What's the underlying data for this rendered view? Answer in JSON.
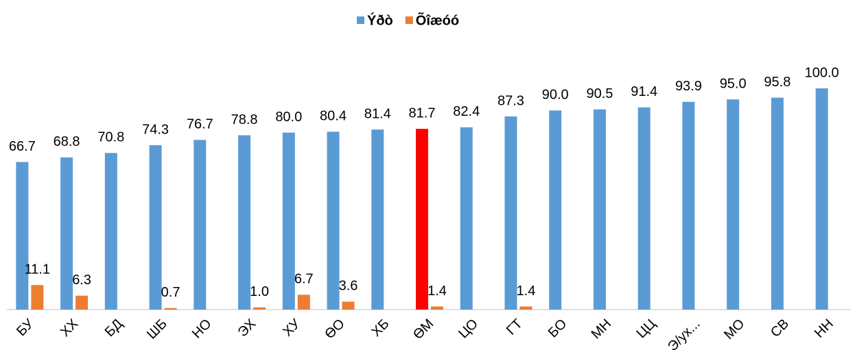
{
  "chart_data": {
    "type": "bar",
    "categories": [
      "БУ",
      "ХХ",
      "БД",
      "ШБ",
      "НО",
      "ЭХ",
      "ХУ",
      "ӨО",
      "ХБ",
      "ӨМ",
      "ЦО",
      "ГТ",
      "БО",
      "МН",
      "ЦЦ",
      "Э/ух...",
      "МО",
      "СВ",
      "НН"
    ],
    "series": [
      {
        "name": "Ýðò",
        "color": "#5b9bd5",
        "colors": [
          "#5b9bd5",
          "#5b9bd5",
          "#5b9bd5",
          "#5b9bd5",
          "#5b9bd5",
          "#5b9bd5",
          "#5b9bd5",
          "#5b9bd5",
          "#5b9bd5",
          "#ff0000",
          "#5b9bd5",
          "#5b9bd5",
          "#5b9bd5",
          "#5b9bd5",
          "#5b9bd5",
          "#5b9bd5",
          "#5b9bd5",
          "#5b9bd5",
          "#5b9bd5"
        ],
        "values": [
          66.7,
          68.8,
          70.8,
          74.3,
          76.7,
          78.8,
          80.0,
          80.4,
          81.4,
          81.7,
          82.4,
          87.3,
          90.0,
          90.5,
          91.4,
          93.9,
          95.0,
          95.8,
          100.0
        ],
        "value_labels": [
          "66.7",
          "68.8",
          "70.8",
          "74.3",
          "76.7",
          "78.8",
          "80.0",
          "80.4",
          "81.4",
          "81.7",
          "82.4",
          "87.3",
          "90.0",
          "90.5",
          "91.4",
          "93.9",
          "95.0",
          "95.8",
          "100.0"
        ]
      },
      {
        "name": "Õîæóó",
        "color": "#ed7d31",
        "values": [
          11.1,
          6.3,
          null,
          0.7,
          null,
          1.0,
          6.7,
          3.6,
          null,
          1.4,
          null,
          1.4,
          null,
          null,
          null,
          null,
          null,
          null,
          null
        ],
        "value_labels": [
          "11.1",
          "6.3",
          null,
          "0.7",
          null,
          "1.0",
          "6.7",
          "3.6",
          null,
          "1.4",
          null,
          "1.4",
          null,
          null,
          null,
          null,
          null,
          null,
          null
        ]
      }
    ],
    "ylim": [
      0,
      100
    ],
    "legend": "top"
  }
}
